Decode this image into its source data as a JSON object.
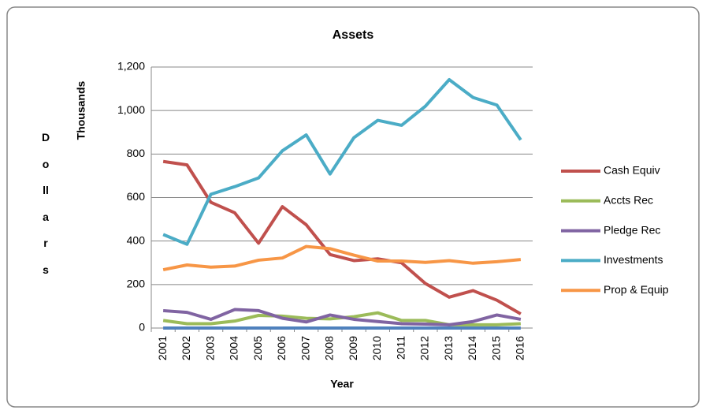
{
  "chart_data": {
    "type": "line",
    "title": "Assets",
    "x_label": "Year",
    "y_label": "Thousands",
    "y_side_label": "Dollars",
    "categories": [
      "2001",
      "2002",
      "2003",
      "2004",
      "2005",
      "2006",
      "2007",
      "2008",
      "2009",
      "2010",
      "2011",
      "2012",
      "2013",
      "2014",
      "2015",
      "2016"
    ],
    "series": [
      {
        "name": "Cash Equiv",
        "color": "#c0504d",
        "values": [
          766,
          750,
          578,
          530,
          390,
          558,
          475,
          338,
          310,
          318,
          300,
          205,
          142,
          172,
          128,
          65
        ]
      },
      {
        "name": "Accts Rec",
        "color": "#9bbb59",
        "values": [
          35,
          20,
          20,
          32,
          58,
          55,
          45,
          42,
          52,
          70,
          35,
          35,
          15,
          15,
          15,
          20
        ]
      },
      {
        "name": "Pledge Rec",
        "color": "#8064a2",
        "values": [
          80,
          72,
          40,
          85,
          80,
          45,
          28,
          60,
          40,
          30,
          20,
          18,
          15,
          30,
          60,
          40
        ]
      },
      {
        "name": "Investments",
        "color": "#4bacc6",
        "values": [
          430,
          385,
          615,
          650,
          690,
          815,
          888,
          708,
          875,
          955,
          932,
          1020,
          1142,
          1060,
          1025,
          865
        ]
      },
      {
        "name": "Prop & Equip",
        "color": "#f79646",
        "values": [
          268,
          290,
          280,
          285,
          312,
          322,
          375,
          365,
          335,
          308,
          308,
          302,
          310,
          298,
          305,
          315
        ]
      },
      {
        "color": "#4f81bd",
        "values": [
          0,
          0,
          0,
          0,
          0,
          0,
          0,
          0,
          0,
          0,
          0,
          0,
          0,
          0,
          0,
          0
        ]
      }
    ],
    "ylim": [
      0,
      1200
    ],
    "yticks": [
      0,
      200,
      400,
      600,
      800,
      {
        "value": 1000,
        "label": "1,000"
      },
      {
        "value": 1200,
        "label": "1,200"
      }
    ],
    "grid": true,
    "legend": "right"
  }
}
